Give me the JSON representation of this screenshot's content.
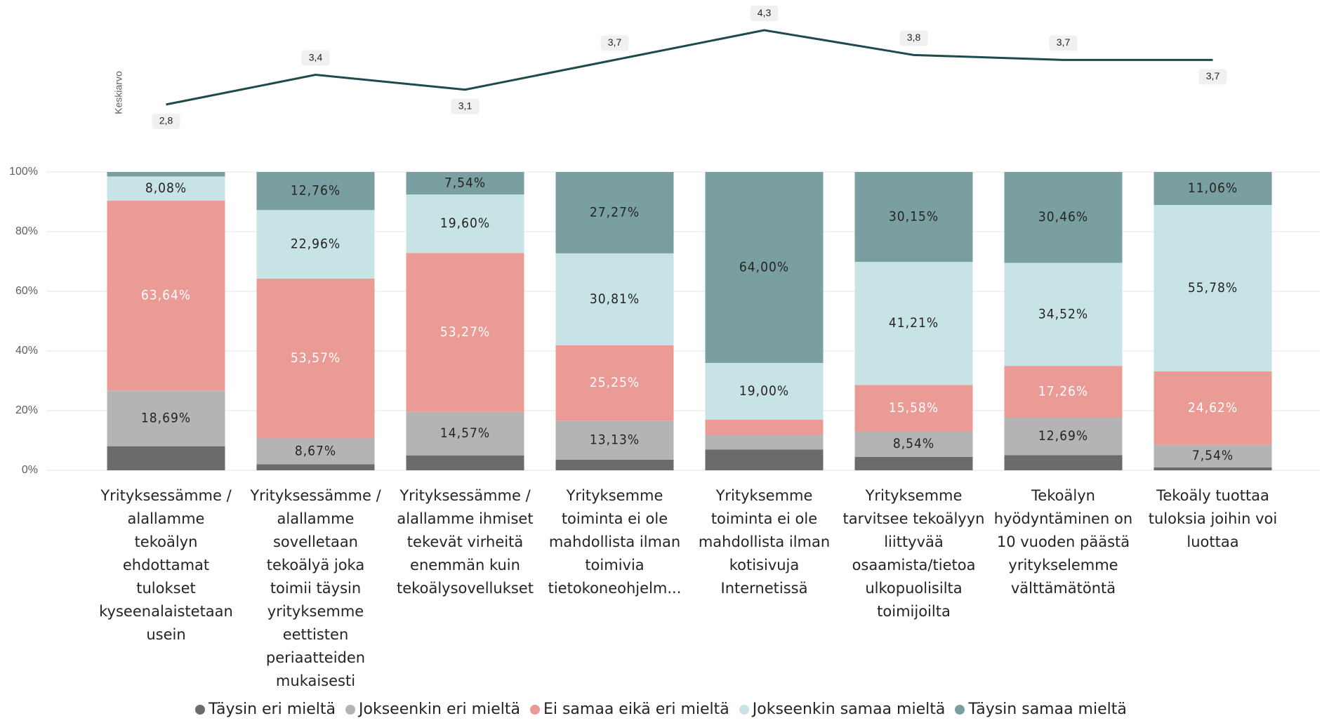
{
  "chart_data": [
    {
      "type": "line",
      "y_label": "Keskiarvo",
      "values": [
        2.8,
        3.4,
        3.1,
        3.7,
        4.3,
        3.8,
        3.7,
        3.7
      ],
      "value_labels": [
        "2,8",
        "3,4",
        "3,1",
        "3,7",
        "4,3",
        "3,8",
        "3,7",
        "3,7"
      ],
      "color": "#1d4a4d",
      "ylim": [
        2.6,
        4.4
      ]
    },
    {
      "type": "stacked_bar",
      "categories": [
        "Yrityksessämme / alallamme tekoälyn ehdottamat tulokset kyseenalaistetaan usein",
        "Yrityksessämme / alallamme sovelletaan tekoälyä joka toimii täysin yrityksemme eettisten periaatteiden mukaisesti",
        "Yrityksessämme / alallamme ihmiset tekevät virheitä enemmän kuin tekoälysovellukset",
        "Yrityksemme toiminta ei ole mahdollista ilman toimivia tietokoneohjelm...",
        "Yrityksemme toiminta ei ole mahdollista ilman kotisivuja Internetissä",
        "Yrityksemme tarvitsee tekoälyyn liittyvää osaamista/tietoa ulkopuolisilta toimijoilta",
        "Tekoälyn hyödyntäminen on 10 vuoden päästä yritykselemme välttämätöntä",
        "Tekoäly tuottaa tuloksia joihin voi luottaa"
      ],
      "series": [
        {
          "name": "Täysin eri mieltä",
          "color": "#6b6b6b",
          "values": [
            8.08,
            2.04,
            5.02,
            3.54,
            7.0,
            4.52,
            5.07,
            1.0
          ],
          "value_labels": [
            null,
            null,
            null,
            null,
            null,
            null,
            null,
            null
          ]
        },
        {
          "name": "Jokseenkin eri mieltä",
          "color": "#b4b4b4",
          "values": [
            18.69,
            8.67,
            14.57,
            13.13,
            5.0,
            8.54,
            12.69,
            7.54
          ],
          "value_labels": [
            "18,69%",
            "8,67%",
            "14,57%",
            "13,13%",
            null,
            "8,54%",
            "12,69%",
            "7,54%"
          ]
        },
        {
          "name": "Ei samaa eikä eri mieltä",
          "color": "#eb9b95",
          "values": [
            63.64,
            53.57,
            53.27,
            25.25,
            5.0,
            15.58,
            17.26,
            24.62
          ],
          "value_labels": [
            "63,64%",
            "53,57%",
            "53,27%",
            "25,25%",
            null,
            "15,58%",
            "17,26%",
            "24,62%"
          ]
        },
        {
          "name": "Jokseenkin samaa mieltä",
          "color": "#c7e3e6",
          "values": [
            8.08,
            22.96,
            19.6,
            30.81,
            19.0,
            41.21,
            34.52,
            55.78
          ],
          "value_labels": [
            "8,08%",
            "22,96%",
            "19,60%",
            "30,81%",
            "19,00%",
            "41,21%",
            "34,52%",
            "55,78%"
          ]
        },
        {
          "name": "Täysin samaa mieltä",
          "color": "#7a9fa0",
          "values": [
            1.51,
            12.76,
            7.54,
            27.27,
            64.0,
            30.15,
            30.46,
            11.06
          ],
          "value_labels": [
            null,
            "12,76%",
            "7,54%",
            "27,27%",
            "64,00%",
            "30,15%",
            "30,46%",
            "11,06%"
          ]
        }
      ],
      "ylim": [
        0,
        100
      ],
      "yticks": [
        {
          "value": 0,
          "label": "0%"
        },
        {
          "value": 20,
          "label": "20%"
        },
        {
          "value": 40,
          "label": "40%"
        },
        {
          "value": 60,
          "label": "60%"
        },
        {
          "value": 80,
          "label": "80%"
        },
        {
          "value": 100,
          "label": "100%"
        }
      ],
      "grid": true,
      "legend": "bottom"
    }
  ]
}
